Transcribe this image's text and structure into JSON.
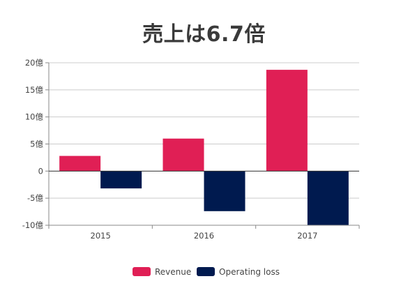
{
  "chart_data": {
    "type": "bar",
    "title": "売上は6.7倍",
    "categories": [
      "2015",
      "2016",
      "2017"
    ],
    "series": [
      {
        "name": "Revenue",
        "values": [
          2.8,
          6.0,
          18.7
        ],
        "color": "#e01f55"
      },
      {
        "name": "Operating loss",
        "values": [
          -3.2,
          -7.4,
          -10.0
        ],
        "color": "#001a4f"
      }
    ],
    "ylim": [
      -10,
      20
    ],
    "yticks": [
      20,
      15,
      10,
      5,
      0,
      -5,
      -10
    ],
    "ytick_labels": [
      "20億",
      "15億",
      "10億",
      "5億",
      "0",
      "-5億",
      "-10億"
    ],
    "grid": true,
    "legend_position": "bottom-center",
    "xlabel": "",
    "ylabel": ""
  }
}
